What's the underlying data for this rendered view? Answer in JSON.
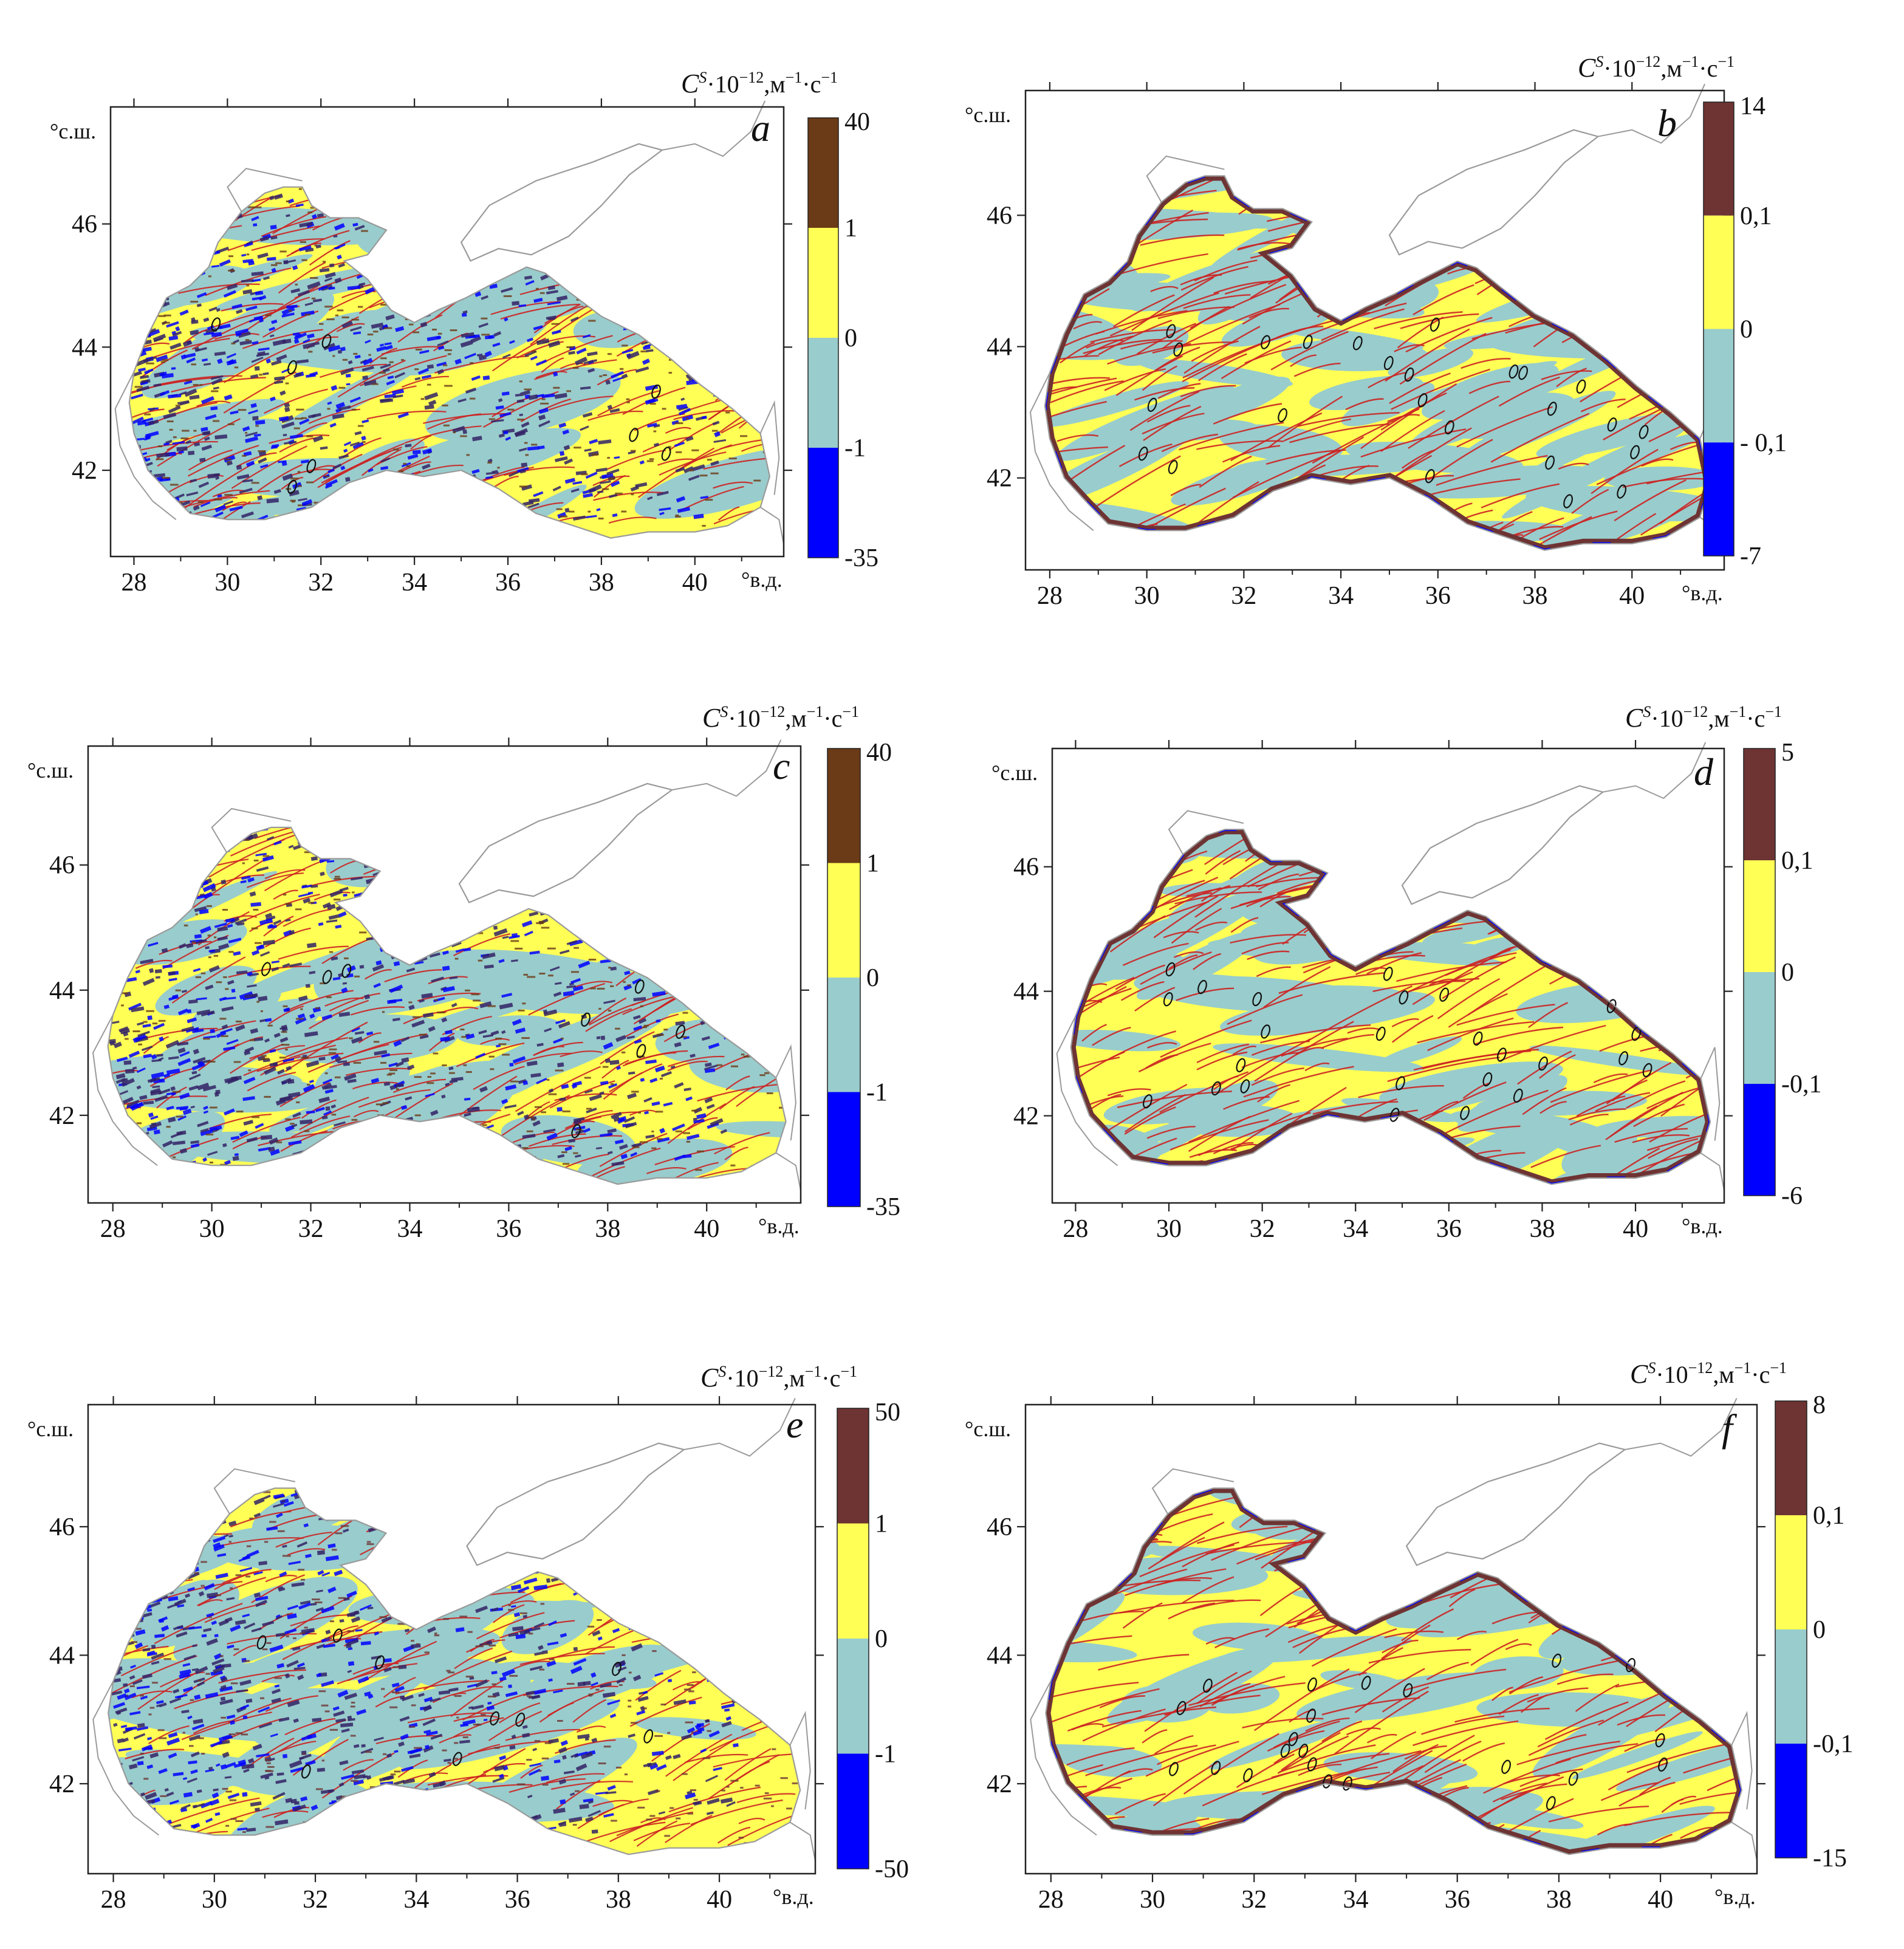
{
  "units": {
    "lat": "°с.ш.",
    "lon": "°в.д."
  },
  "colorbar_title": {
    "symbol": "C",
    "symbol_sup": "S",
    "scale": "·10",
    "scale_sup": "−12",
    "unit": ",м",
    "unit_sup1": "−1",
    "mid": "·с",
    "unit_sup2": "−1"
  },
  "lon_ticks": [
    "28",
    "30",
    "32",
    "34",
    "36",
    "38",
    "40"
  ],
  "lat_ticks": [
    "46",
    "44",
    "42"
  ],
  "colors": {
    "dark_brown": "#6b3a16",
    "brown": "#6e3333",
    "yellow": "#ffff55",
    "teal": "#99cccc",
    "blue": "#0000ff",
    "contour_red": "#cc2222",
    "contour_dark": "#332266",
    "land_line": "#9a9a9a"
  },
  "panels": [
    {
      "id": "a",
      "label": "a",
      "colorbar": [
        "40",
        "1",
        "0",
        "-1",
        "-35"
      ],
      "colors": [
        "#6b3a16",
        "#ffff55",
        "#99cccc",
        "#0000ff"
      ],
      "regime": "coarse"
    },
    {
      "id": "b",
      "label": "b",
      "colorbar": [
        "14",
        "0,1",
        "0",
        "- 0,1",
        "-7"
      ],
      "colors": [
        "#6e3333",
        "#ffff55",
        "#99cccc",
        "#0000ff"
      ],
      "regime": "fine"
    },
    {
      "id": "c",
      "label": "c",
      "colorbar": [
        "40",
        "1",
        "0",
        "-1",
        "-35"
      ],
      "colors": [
        "#6b3a16",
        "#ffff55",
        "#99cccc",
        "#0000ff"
      ],
      "regime": "coarse"
    },
    {
      "id": "d",
      "label": "d",
      "colorbar": [
        "5",
        "0,1",
        "0",
        "-0,1",
        "-6"
      ],
      "colors": [
        "#6e3333",
        "#ffff55",
        "#99cccc",
        "#0000ff"
      ],
      "regime": "fine"
    },
    {
      "id": "e",
      "label": "e",
      "colorbar": [
        "50",
        "1",
        "0",
        "-1",
        "-50"
      ],
      "colors": [
        "#6e3333",
        "#ffff55",
        "#99cccc",
        "#0000ff"
      ],
      "regime": "coarse"
    },
    {
      "id": "f",
      "label": "f",
      "colorbar": [
        "8",
        "0,1",
        "0",
        "-0,1",
        "-15"
      ],
      "colors": [
        "#6e3333",
        "#ffff55",
        "#99cccc",
        "#0000ff"
      ],
      "regime": "fine"
    }
  ]
}
